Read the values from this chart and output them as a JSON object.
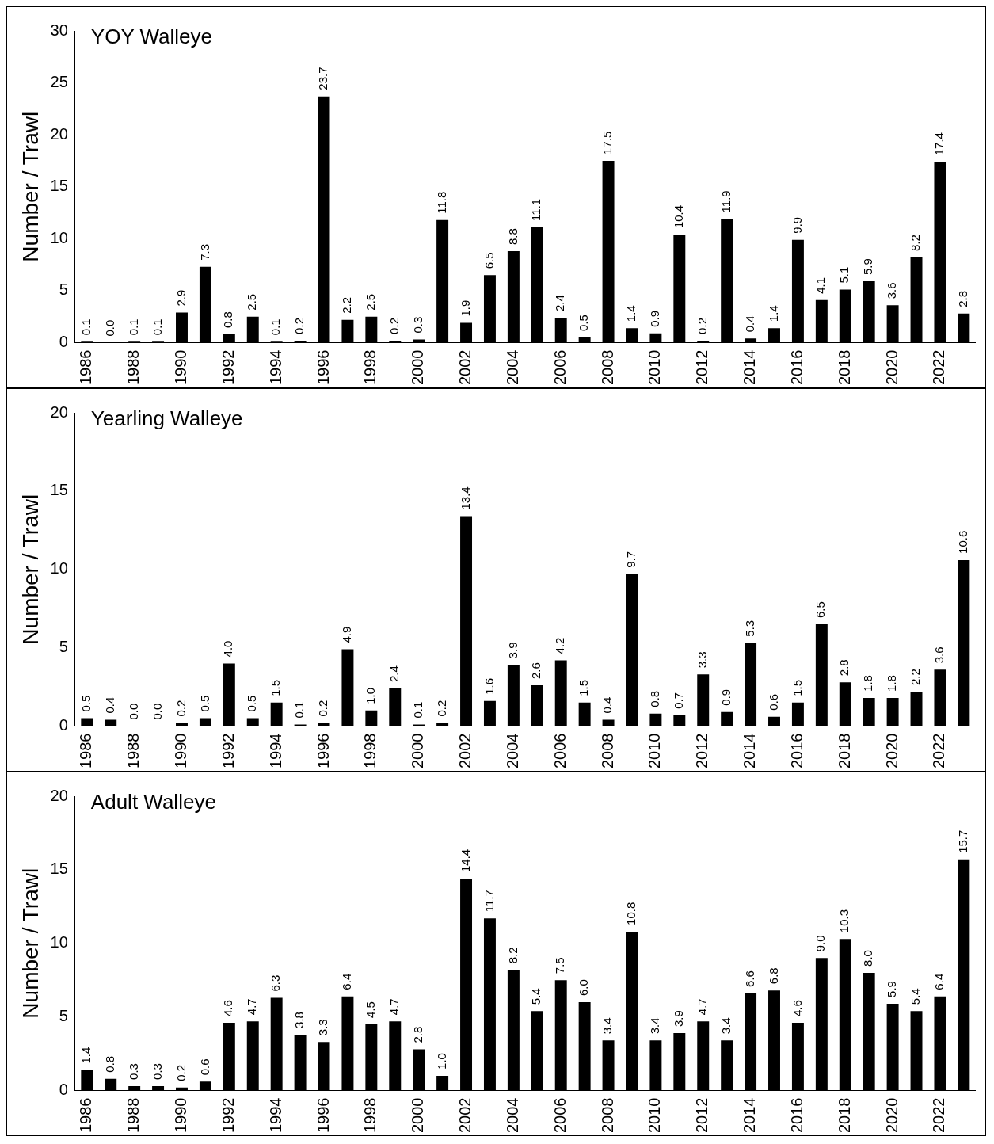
{
  "chart_data": [
    {
      "type": "bar",
      "title": "YOY Walleye",
      "ylabel": "Number / Trawl",
      "categories": [
        "1986",
        null,
        "1988",
        null,
        "1990",
        null,
        "1992",
        null,
        "1994",
        null,
        "1996",
        null,
        "1998",
        null,
        "2000",
        null,
        "2002",
        null,
        "2004",
        null,
        "2006",
        null,
        "2008",
        null,
        "2010",
        null,
        "2012",
        null,
        "2014",
        null,
        "2016",
        null,
        "2018",
        null,
        "2020",
        null,
        "2022",
        null
      ],
      "values": [
        0.1,
        0.0,
        0.1,
        0.1,
        2.9,
        7.3,
        0.8,
        2.5,
        0.1,
        0.2,
        23.7,
        2.2,
        2.5,
        0.2,
        0.3,
        11.8,
        1.9,
        6.5,
        8.8,
        11.1,
        2.4,
        0.5,
        17.5,
        1.4,
        0.9,
        10.4,
        0.2,
        11.9,
        0.4,
        1.4,
        9.9,
        4.1,
        5.1,
        5.9,
        3.6,
        8.2,
        17.4,
        2.8
      ],
      "value_labels": [
        "0.1",
        "0.0",
        "0.1",
        "0.1",
        "2.9",
        "7.3",
        "0.8",
        "2.5",
        "0.1",
        "0.2",
        "23.7",
        "2.2",
        "2.5",
        "0.2",
        "0.3",
        "11.8",
        "1.9",
        "6.5",
        "8.8",
        "11.1",
        "2.4",
        "0.5",
        "17.5",
        "1.4",
        "0.9",
        "10.4",
        "0.2",
        "11.9",
        "0.4",
        "1.4",
        "9.9",
        "4.1",
        "5.1",
        "5.9",
        "3.6",
        "8.2",
        "17.4",
        "2.8"
      ],
      "color": "#000000",
      "ylim": [
        0,
        30
      ],
      "yticks": [
        0,
        5,
        10,
        15,
        20,
        25,
        30
      ]
    },
    {
      "type": "bar",
      "title": "Yearling Walleye",
      "ylabel": "Number / Trawl",
      "categories": [
        "1986",
        null,
        "1988",
        null,
        "1990",
        null,
        "1992",
        null,
        "1994",
        null,
        "1996",
        null,
        "1998",
        null,
        "2000",
        null,
        "2002",
        null,
        "2004",
        null,
        "2006",
        null,
        "2008",
        null,
        "2010",
        null,
        "2012",
        null,
        "2014",
        null,
        "2016",
        null,
        "2018",
        null,
        "2020",
        null,
        "2022",
        null
      ],
      "values": [
        0.5,
        0.4,
        0.0,
        0.0,
        0.2,
        0.5,
        4.0,
        0.5,
        1.5,
        0.1,
        0.2,
        4.9,
        1.0,
        2.4,
        0.1,
        0.2,
        13.4,
        1.6,
        3.9,
        2.6,
        4.2,
        1.5,
        0.4,
        9.7,
        0.8,
        0.7,
        3.3,
        0.9,
        5.3,
        0.6,
        1.5,
        6.5,
        2.8,
        1.8,
        1.8,
        2.2,
        3.6,
        10.6
      ],
      "value_labels": [
        "0.5",
        "0.4",
        "0.0",
        "0.0",
        "0.2",
        "0.5",
        "4.0",
        "0.5",
        "1.5",
        "0.1",
        "0.2",
        "4.9",
        "1.0",
        "2.4",
        "0.1",
        "0.2",
        "13.4",
        "1.6",
        "3.9",
        "2.6",
        "4.2",
        "1.5",
        "0.4",
        "9.7",
        "0.8",
        "0.7",
        "3.3",
        "0.9",
        "5.3",
        "0.6",
        "1.5",
        "6.5",
        "2.8",
        "1.8",
        "1.8",
        "2.2",
        "3.6",
        "10.6"
      ],
      "color": "#000000",
      "ylim": [
        0,
        20
      ],
      "yticks": [
        0,
        5,
        10,
        15,
        20
      ]
    },
    {
      "type": "bar",
      "title": "Adult Walleye",
      "ylabel": "Number / Trawl",
      "categories": [
        "1986",
        null,
        "1988",
        null,
        "1990",
        null,
        "1992",
        null,
        "1994",
        null,
        "1996",
        null,
        "1998",
        null,
        "2000",
        null,
        "2002",
        null,
        "2004",
        null,
        "2006",
        null,
        "2008",
        null,
        "2010",
        null,
        "2012",
        null,
        "2014",
        null,
        "2016",
        null,
        "2018",
        null,
        "2020",
        null,
        "2022",
        null
      ],
      "values": [
        1.4,
        0.8,
        0.3,
        0.3,
        0.2,
        0.6,
        4.6,
        4.7,
        6.3,
        3.8,
        3.3,
        6.4,
        4.5,
        4.7,
        2.8,
        1.0,
        14.4,
        11.7,
        8.2,
        5.4,
        7.5,
        6.0,
        3.4,
        10.8,
        3.4,
        3.9,
        4.7,
        3.4,
        6.6,
        6.8,
        4.6,
        9.0,
        10.3,
        8.0,
        5.9,
        5.4,
        6.4,
        15.7
      ],
      "value_labels": [
        "1.4",
        "0.8",
        "0.3",
        "0.3",
        "0.2",
        "0.6",
        "4.6",
        "4.7",
        "6.3",
        "3.8",
        "3.3",
        "6.4",
        "4.5",
        "4.7",
        "2.8",
        "1.0",
        "14.4",
        "11.7",
        "8.2",
        "5.4",
        "7.5",
        "6.0",
        "3.4",
        "10.8",
        "3.4",
        "3.9",
        "4.7",
        "3.4",
        "6.6",
        "6.8",
        "4.6",
        "9.0",
        "10.3",
        "8.0",
        "5.9",
        "5.4",
        "6.4",
        "15.7"
      ],
      "color": "#000000",
      "ylim": [
        0,
        20
      ],
      "yticks": [
        0,
        5,
        10,
        15,
        20
      ]
    }
  ]
}
